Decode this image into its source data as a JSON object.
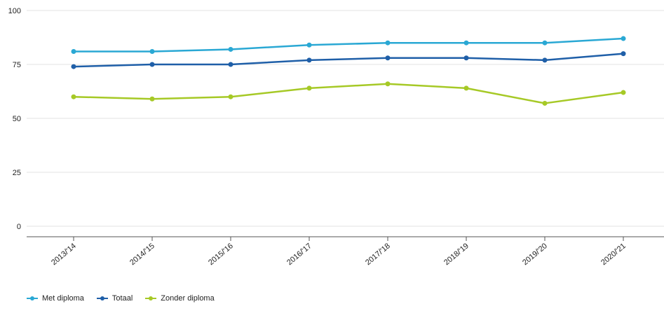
{
  "chart_data": {
    "type": "line",
    "title": "",
    "xlabel": "",
    "ylabel": "",
    "categories": [
      "2013/'14",
      "2014/'15",
      "2015/'16",
      "2016/'17",
      "2017/'18",
      "2018/'19",
      "2019/'20",
      "2020/'21"
    ],
    "ylim": [
      0,
      100
    ],
    "yticks": [
      "0",
      "25",
      "50",
      "75",
      "100"
    ],
    "grid": true,
    "legend_position": "bottom-left",
    "series": [
      {
        "name": "Met diploma",
        "color": "#2aa8d4",
        "values": [
          81,
          81,
          82,
          84,
          85,
          85,
          85,
          87
        ]
      },
      {
        "name": "Totaal",
        "color": "#1f5fa8",
        "values": [
          74,
          75,
          75,
          77,
          78,
          78,
          77,
          80
        ]
      },
      {
        "name": "Zonder diploma",
        "color": "#a6c926",
        "values": [
          60,
          59,
          60,
          64,
          66,
          64,
          57,
          62
        ]
      }
    ]
  }
}
